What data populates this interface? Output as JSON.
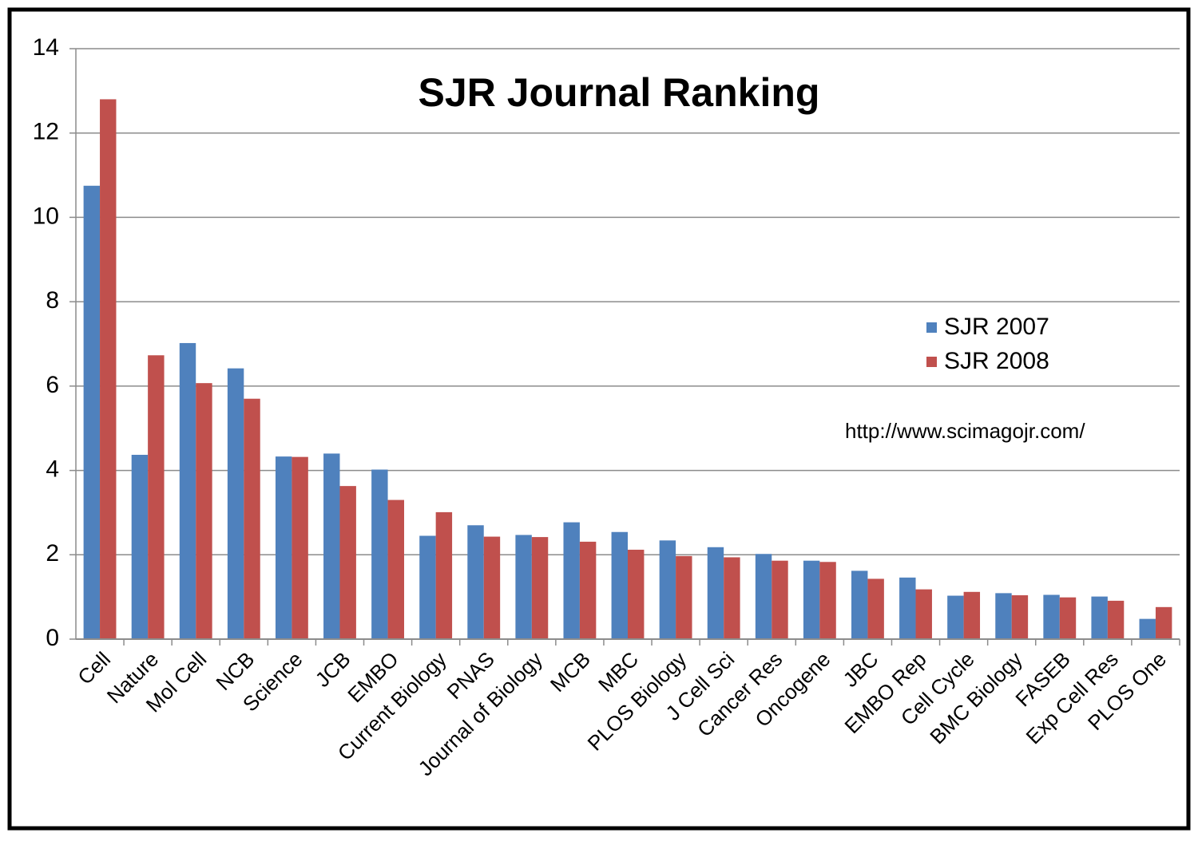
{
  "chart_data": {
    "type": "bar",
    "title": "SJR Journal Ranking",
    "annotation": "http://www.scimagojr.com/",
    "categories": [
      "Cell",
      "Nature",
      "Mol Cell",
      "NCB",
      "Science",
      "JCB",
      "EMBO",
      "Current Biology",
      "PNAS",
      "Journal of Biology",
      "MCB",
      "MBC",
      "PLOS Biology",
      "J Cell Sci",
      "Cancer Res",
      "Oncogene",
      "JBC",
      "EMBO Rep",
      "Cell Cycle",
      "BMC Biology",
      "FASEB",
      "Exp Cell Res",
      "PLOS One"
    ],
    "series": [
      {
        "name": "SJR 2007",
        "color": "#4f81bd",
        "values": [
          10.75,
          4.37,
          7.02,
          6.42,
          4.33,
          4.4,
          4.02,
          2.45,
          2.7,
          2.47,
          2.77,
          2.54,
          2.34,
          2.18,
          2.02,
          1.86,
          1.62,
          1.46,
          1.03,
          1.09,
          1.05,
          1.01,
          0.48
        ]
      },
      {
        "name": "SJR 2008",
        "color": "#c0504d",
        "values": [
          12.8,
          6.73,
          6.07,
          5.7,
          4.32,
          3.63,
          3.3,
          3.01,
          2.43,
          2.42,
          2.31,
          2.12,
          1.97,
          1.94,
          1.86,
          1.83,
          1.43,
          1.18,
          1.12,
          1.04,
          0.99,
          0.91,
          0.76
        ]
      }
    ],
    "ylim": [
      0,
      14
    ],
    "yticks": [
      0,
      2,
      4,
      6,
      8,
      10,
      12,
      14
    ],
    "grid": true,
    "legend": "right"
  }
}
